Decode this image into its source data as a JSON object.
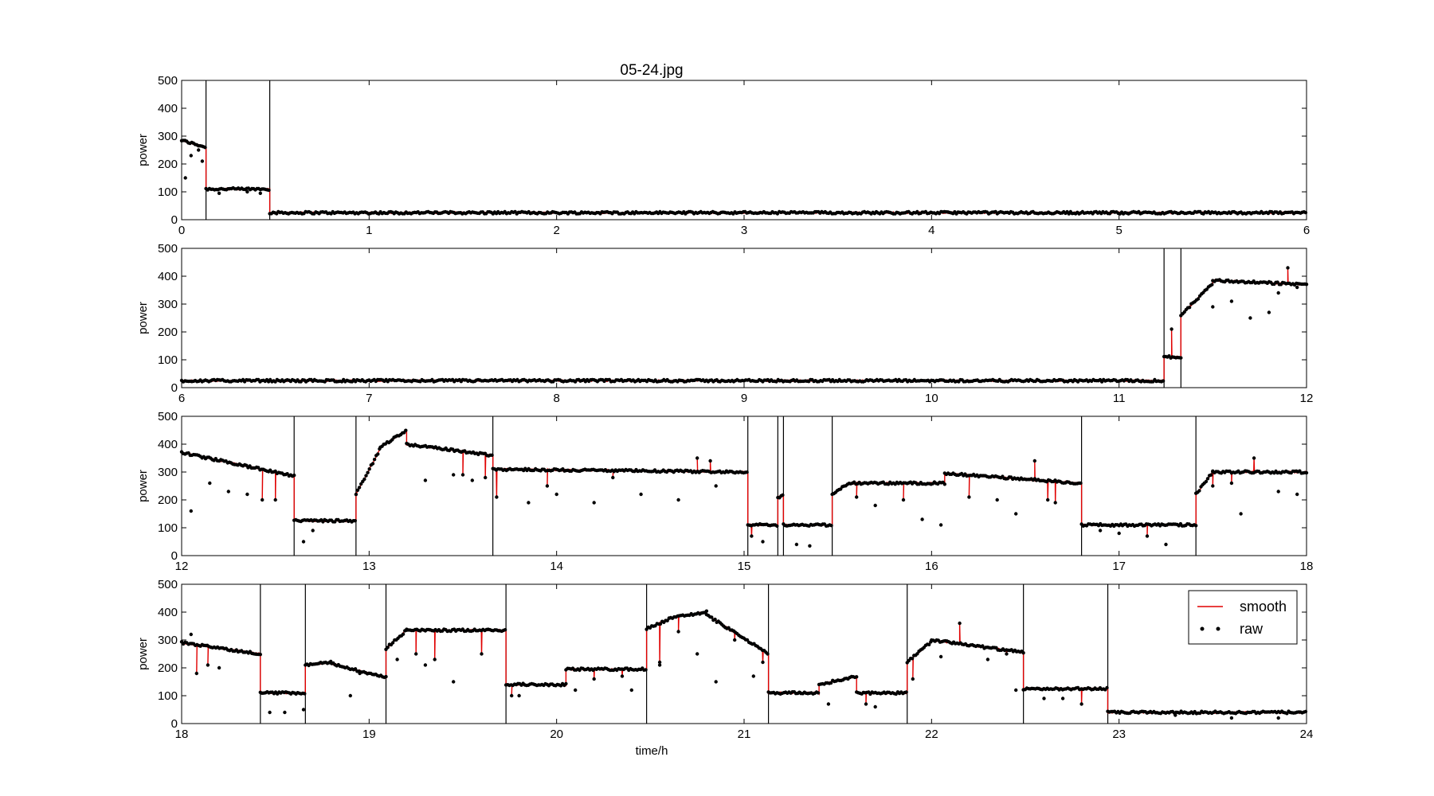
{
  "chart_data": {
    "type": "line",
    "title": "05-24.jpg",
    "xlabel": "time/h",
    "ylabel": "power",
    "ylim": [
      0,
      500
    ],
    "yticks": [
      0,
      100,
      200,
      300,
      400,
      500
    ],
    "grid": false,
    "legend_position": "top-right of bottom panel",
    "colors": {
      "smooth": "#e00000",
      "raw": "#000000",
      "boundary": "#000000"
    },
    "series_names": [
      "smooth",
      "raw"
    ],
    "panels": [
      {
        "xlim": [
          0,
          6
        ],
        "xticks": [
          0,
          1,
          2,
          3,
          4,
          5,
          6
        ],
        "boundaries": [
          0.13,
          0.47
        ],
        "segments": [
          [
            0,
            0.13,
            285,
            260
          ],
          [
            0.13,
            0.47,
            110,
            110
          ],
          [
            0.47,
            6,
            25,
            25
          ]
        ],
        "dips": [],
        "raw_outliers": [
          [
            0.02,
            150
          ],
          [
            0.05,
            230
          ],
          [
            0.09,
            250
          ],
          [
            0.11,
            210
          ],
          [
            0.2,
            95
          ],
          [
            0.35,
            100
          ],
          [
            0.42,
            95
          ]
        ]
      },
      {
        "xlim": [
          6,
          12
        ],
        "xticks": [
          6,
          7,
          8,
          9,
          10,
          11,
          12
        ],
        "boundaries": [
          11.24,
          11.33
        ],
        "segments": [
          [
            6,
            11.24,
            25,
            25
          ],
          [
            11.24,
            11.33,
            110,
            110
          ],
          [
            11.33,
            11.5,
            260,
            375
          ],
          [
            11.5,
            12,
            385,
            370
          ]
        ],
        "dips": [
          [
            11.28,
            210
          ],
          [
            11.9,
            430
          ]
        ],
        "raw_outliers": [
          [
            11.5,
            290
          ],
          [
            11.6,
            310
          ],
          [
            11.7,
            250
          ],
          [
            11.8,
            270
          ],
          [
            11.85,
            340
          ],
          [
            11.95,
            360
          ]
        ]
      },
      {
        "xlim": [
          12,
          18
        ],
        "xticks": [
          12,
          13,
          14,
          15,
          16,
          17,
          18
        ],
        "boundaries": [
          12.6,
          12.93,
          13.66,
          15.02,
          15.18,
          15.21,
          15.47,
          16.8,
          17.41
        ],
        "segments": [
          [
            12,
            12.6,
            370,
            285
          ],
          [
            12.6,
            12.93,
            125,
            125
          ],
          [
            12.93,
            13.06,
            220,
            385
          ],
          [
            13.06,
            13.2,
            390,
            450
          ],
          [
            13.2,
            13.66,
            400,
            360
          ],
          [
            13.66,
            15.02,
            310,
            300
          ],
          [
            15.02,
            15.18,
            110,
            110
          ],
          [
            15.18,
            15.21,
            210,
            215
          ],
          [
            15.21,
            15.47,
            110,
            110
          ],
          [
            15.47,
            15.56,
            220,
            260
          ],
          [
            15.56,
            16.07,
            260,
            260
          ],
          [
            16.07,
            16.8,
            295,
            260
          ],
          [
            16.8,
            17.41,
            110,
            110
          ],
          [
            17.41,
            17.5,
            220,
            300
          ],
          [
            17.5,
            18,
            300,
            300
          ]
        ],
        "dips": [
          [
            12.43,
            200
          ],
          [
            12.5,
            200
          ],
          [
            13.5,
            290
          ],
          [
            13.62,
            280
          ],
          [
            13.68,
            210
          ],
          [
            13.95,
            250
          ],
          [
            14.3,
            280
          ],
          [
            14.75,
            350
          ],
          [
            14.82,
            340
          ],
          [
            15.04,
            70
          ],
          [
            15.6,
            210
          ],
          [
            15.85,
            200
          ],
          [
            16.2,
            210
          ],
          [
            16.55,
            340
          ],
          [
            16.62,
            200
          ],
          [
            16.66,
            190
          ],
          [
            17.15,
            70
          ],
          [
            17.5,
            250
          ],
          [
            17.6,
            260
          ],
          [
            17.72,
            350
          ]
        ],
        "raw_outliers": [
          [
            12.05,
            160
          ],
          [
            12.15,
            260
          ],
          [
            12.25,
            230
          ],
          [
            12.35,
            220
          ],
          [
            12.65,
            50
          ],
          [
            12.7,
            90
          ],
          [
            13.3,
            270
          ],
          [
            13.45,
            290
          ],
          [
            13.55,
            270
          ],
          [
            13.85,
            190
          ],
          [
            14.0,
            220
          ],
          [
            14.2,
            190
          ],
          [
            14.45,
            220
          ],
          [
            14.65,
            200
          ],
          [
            14.85,
            250
          ],
          [
            15.1,
            50
          ],
          [
            15.28,
            40
          ],
          [
            15.35,
            35
          ],
          [
            15.7,
            180
          ],
          [
            15.95,
            130
          ],
          [
            16.05,
            110
          ],
          [
            16.35,
            200
          ],
          [
            16.45,
            150
          ],
          [
            16.9,
            90
          ],
          [
            17.0,
            80
          ],
          [
            17.25,
            40
          ],
          [
            17.65,
            150
          ],
          [
            17.85,
            230
          ],
          [
            17.95,
            220
          ]
        ]
      },
      {
        "xlim": [
          18,
          24
        ],
        "xticks": [
          18,
          19,
          20,
          21,
          22,
          23,
          24
        ],
        "boundaries": [
          18.42,
          18.66,
          19.09,
          19.73,
          20.48,
          21.13,
          21.87,
          22.49,
          22.94
        ],
        "segments": [
          [
            18,
            18.42,
            290,
            250
          ],
          [
            18.42,
            18.66,
            110,
            110
          ],
          [
            18.66,
            18.8,
            210,
            220
          ],
          [
            18.8,
            19.09,
            215,
            165
          ],
          [
            19.09,
            19.2,
            270,
            335
          ],
          [
            19.2,
            19.73,
            335,
            335
          ],
          [
            19.73,
            20.05,
            140,
            140
          ],
          [
            20.05,
            20.48,
            195,
            195
          ],
          [
            20.48,
            20.6,
            340,
            375
          ],
          [
            20.6,
            20.8,
            380,
            400
          ],
          [
            20.8,
            21.13,
            390,
            250
          ],
          [
            21.13,
            21.4,
            110,
            110
          ],
          [
            21.4,
            21.6,
            140,
            170
          ],
          [
            21.6,
            21.87,
            110,
            110
          ],
          [
            21.87,
            22.0,
            220,
            295
          ],
          [
            22.0,
            22.49,
            300,
            255
          ],
          [
            22.49,
            22.94,
            125,
            125
          ],
          [
            22.94,
            24,
            40,
            40
          ]
        ],
        "dips": [
          [
            18.08,
            180
          ],
          [
            18.14,
            210
          ],
          [
            18.95,
            180
          ],
          [
            19.25,
            250
          ],
          [
            19.35,
            230
          ],
          [
            19.6,
            250
          ],
          [
            19.76,
            100
          ],
          [
            20.2,
            160
          ],
          [
            20.35,
            170
          ],
          [
            20.55,
            220
          ],
          [
            20.65,
            330
          ],
          [
            20.95,
            300
          ],
          [
            21.1,
            220
          ],
          [
            21.65,
            70
          ],
          [
            21.9,
            160
          ],
          [
            22.15,
            360
          ],
          [
            22.4,
            250
          ],
          [
            22.8,
            70
          ]
        ],
        "raw_outliers": [
          [
            18.05,
            320
          ],
          [
            18.2,
            200
          ],
          [
            18.47,
            40
          ],
          [
            18.55,
            40
          ],
          [
            18.65,
            50
          ],
          [
            18.9,
            100
          ],
          [
            19.15,
            230
          ],
          [
            19.3,
            210
          ],
          [
            19.45,
            150
          ],
          [
            19.8,
            100
          ],
          [
            20.1,
            120
          ],
          [
            20.4,
            120
          ],
          [
            20.55,
            210
          ],
          [
            20.75,
            250
          ],
          [
            20.85,
            150
          ],
          [
            21.05,
            170
          ],
          [
            21.3,
            110
          ],
          [
            21.45,
            70
          ],
          [
            21.7,
            60
          ],
          [
            22.05,
            240
          ],
          [
            22.3,
            230
          ],
          [
            22.45,
            120
          ],
          [
            22.6,
            90
          ],
          [
            22.7,
            90
          ],
          [
            23.3,
            30
          ],
          [
            23.6,
            20
          ],
          [
            23.85,
            20
          ]
        ]
      }
    ]
  }
}
